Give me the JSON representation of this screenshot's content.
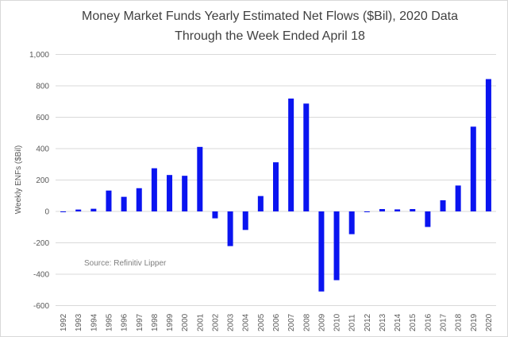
{
  "chart_data": {
    "type": "bar",
    "title": [
      "Money Market Funds Yearly Estimated Net Flows ($Bil), 2020 Data",
      "Through the Week Ended April 18"
    ],
    "xlabel": "",
    "ylabel": "Weekly ENFs ($Bil)",
    "ylim": [
      -600,
      1000
    ],
    "yticks": [
      "1,000",
      "800",
      "600",
      "400",
      "200",
      "0",
      "-200",
      "-400",
      "-600"
    ],
    "ytick_values": [
      1000,
      800,
      600,
      400,
      200,
      0,
      -200,
      -400,
      -600
    ],
    "grid": true,
    "legend": "none",
    "annotation": "Source: Refinitiv Lipper",
    "bar_color": "#0a14f0",
    "categories": [
      "1992",
      "1993",
      "1994",
      "1995",
      "1996",
      "1997",
      "1998",
      "1999",
      "2000",
      "2001",
      "2002",
      "2003",
      "2004",
      "2005",
      "2006",
      "2007",
      "2008",
      "2009",
      "2010",
      "2011",
      "2012",
      "2013",
      "2014",
      "2015",
      "2016",
      "2017",
      "2018",
      "2019",
      "2020"
    ],
    "values": [
      -3,
      12,
      17,
      133,
      93,
      148,
      275,
      232,
      227,
      411,
      -44,
      -221,
      -118,
      98,
      313,
      719,
      687,
      -510,
      -438,
      -145,
      -3,
      15,
      13,
      15,
      -99,
      71,
      165,
      540,
      843
    ]
  }
}
